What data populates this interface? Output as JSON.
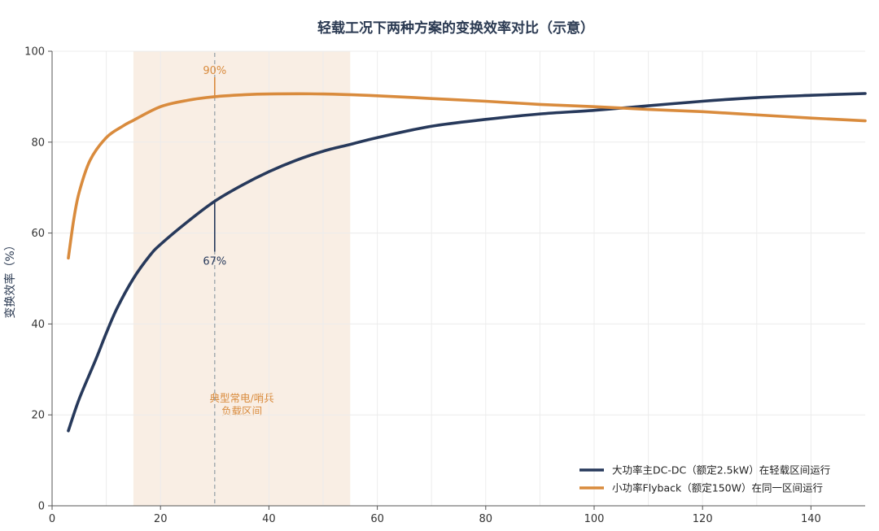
{
  "chart_data": {
    "type": "line",
    "title": "轻载工况下两种方案的变换效率对比（示意）",
    "xlabel": "",
    "ylabel": "变换效率（%）",
    "xlim": [
      0,
      150
    ],
    "ylim": [
      0,
      100
    ],
    "x_ticks": [
      0,
      20,
      40,
      60,
      80,
      100,
      120,
      140
    ],
    "y_ticks": [
      0,
      20,
      40,
      60,
      80,
      100
    ],
    "grid": true,
    "legend_position": "bottom-right",
    "highlight_region": {
      "x_range": [
        15,
        55
      ],
      "label_line1": "典型常电/哨兵",
      "label_line2": "负载区间",
      "color": "#f9eee4"
    },
    "reference_line": {
      "x": 30,
      "style": "dashed"
    },
    "annotations": [
      {
        "text": "90%",
        "x": 30,
        "y": 90,
        "series": 1
      },
      {
        "text": "67%",
        "x": 30,
        "y": 67,
        "series": 0
      }
    ],
    "series": [
      {
        "name": "大功率主DC-DC（额定2.5kW）在轻载区间运行",
        "color": "#27395b",
        "points": [
          [
            3,
            16.5
          ],
          [
            5,
            23.5
          ],
          [
            8,
            32
          ],
          [
            10,
            38
          ],
          [
            12,
            43.5
          ],
          [
            15,
            50
          ],
          [
            18,
            55
          ],
          [
            20,
            57.5
          ],
          [
            25,
            62.5
          ],
          [
            30,
            67
          ],
          [
            35,
            70.5
          ],
          [
            40,
            73.5
          ],
          [
            45,
            76
          ],
          [
            50,
            78
          ],
          [
            55,
            79.5
          ],
          [
            60,
            81
          ],
          [
            70,
            83.5
          ],
          [
            80,
            85
          ],
          [
            90,
            86.2
          ],
          [
            100,
            87
          ],
          [
            110,
            88
          ],
          [
            120,
            89
          ],
          [
            130,
            89.8
          ],
          [
            140,
            90.3
          ],
          [
            150,
            90.7
          ]
        ]
      },
      {
        "name": "小功率Flyback（额定150W）在同一区间运行",
        "color": "#d98b3d",
        "points": [
          [
            3,
            54.5
          ],
          [
            4,
            63
          ],
          [
            5,
            69
          ],
          [
            7,
            76
          ],
          [
            10,
            81
          ],
          [
            13,
            83.5
          ],
          [
            15,
            84.8
          ],
          [
            20,
            87.8
          ],
          [
            25,
            89.2
          ],
          [
            30,
            90
          ],
          [
            35,
            90.4
          ],
          [
            40,
            90.6
          ],
          [
            50,
            90.6
          ],
          [
            60,
            90.2
          ],
          [
            70,
            89.6
          ],
          [
            80,
            89
          ],
          [
            90,
            88.3
          ],
          [
            100,
            87.8
          ],
          [
            110,
            87.2
          ],
          [
            120,
            86.7
          ],
          [
            130,
            86
          ],
          [
            140,
            85.3
          ],
          [
            150,
            84.7
          ]
        ]
      }
    ]
  }
}
